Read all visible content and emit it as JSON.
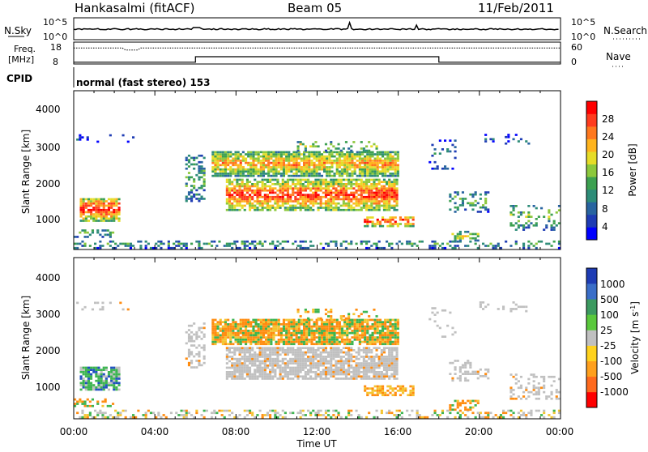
{
  "header": {
    "station": "Hankasalmi (fitACF)",
    "beam": "Beam 05",
    "date": "11/Feb/2011"
  },
  "top_panels": {
    "nsky_label": "N.Sky",
    "nsky_ticks": [
      "10^5",
      "10^0"
    ],
    "nsearch_label": "N.Search",
    "nsearch_ticks": [
      "10^5",
      "10^0"
    ],
    "freq_label_line1": "Freq.",
    "freq_label_line2": "[MHz]",
    "freq_ticks": [
      "18",
      "8"
    ],
    "nave_label": "Nave",
    "nave_ticks": [
      "60",
      "0"
    ],
    "cpid_label": "CPID",
    "cpid_text": "normal (fast stereo) 153"
  },
  "colors": {
    "scatter_red": "#ff2a1a",
    "scatter_orange": "#ff8c10",
    "scatter_yellow": "#f4c430",
    "scatter_green": "#3cb450",
    "scatter_blue": "#2050c0",
    "ground_gray": "#c0c0c0"
  },
  "chart_data": [
    {
      "type": "heatmap",
      "parameter": "power",
      "ylabel": "Slant Range [km]",
      "y_ticks": [
        "1000",
        "2000",
        "3000",
        "4000"
      ],
      "ylim": [
        180,
        4600
      ],
      "xlim_hours": [
        0,
        24
      ],
      "colorbar_label": "Power [dB]",
      "colorbar_ticks": [
        "4",
        "8",
        "12",
        "16",
        "20",
        "24",
        "28"
      ],
      "colorbar_range": [
        0,
        30
      ],
      "colorbar_colors": [
        "#0000ff",
        "#1e3cb4",
        "#2864a0",
        "#2d8c78",
        "#3ca050",
        "#8cc83c",
        "#e6dc28",
        "#ffb41e",
        "#ff781e",
        "#ff3c1e",
        "#ff0000"
      ]
    },
    {
      "type": "heatmap",
      "parameter": "velocity",
      "ylabel": "Slant Range [km]",
      "y_ticks": [
        "1000",
        "2000",
        "3000",
        "4000"
      ],
      "ylim": [
        180,
        4600
      ],
      "xlim_hours": [
        0,
        24
      ],
      "colorbar_label": "Velocity [m s",
      "colorbar_label_sup": "-1",
      "colorbar_label_end": "]",
      "colorbar_ticks": [
        "1000",
        "500",
        "100",
        "25",
        "-25",
        "-100",
        "-500",
        "-1000"
      ],
      "colorbar_colors": [
        "#1e3cb4",
        "#3a6ec8",
        "#3c9a60",
        "#5ac83c",
        "#c0c0c0",
        "#ffd21e",
        "#ffa01e",
        "#ff6a1e",
        "#ff0000"
      ]
    }
  ],
  "x_axis": {
    "label": "Time UT",
    "ticks": [
      "00:00",
      "04:00",
      "08:00",
      "12:00",
      "16:00",
      "20:00",
      "00:00"
    ]
  }
}
